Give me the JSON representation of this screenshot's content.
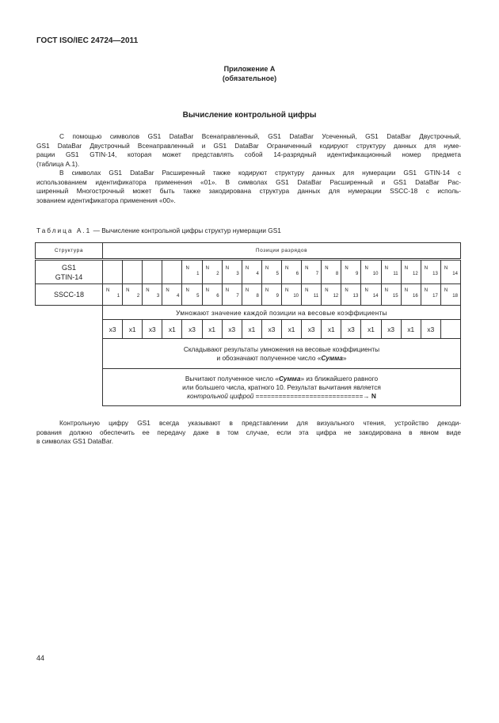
{
  "header": "ГОСТ ISO/IEC 24724—2011",
  "appendix": {
    "title": "Приложение А",
    "status": "(обязательное)"
  },
  "section_title": "Вычисление контрольной цифры",
  "paragraphs": [
    [
      "С помощью символов GS1 DataBar Всенаправленный, GS1 DataBar Усеченный, GS1 DataBar Двустрочный,",
      "GS1 DataBar Двустрочный Всенаправленный и GS1 DataBar Ограниченный кодируют структуру данных для нуме-",
      "рации GS1 GTIN-14, которая может представлять собой 14-разрядный идентификационный номер предмета",
      "(таблица А.1)."
    ],
    [
      "В символах GS1 DataBar Расширенный также кодируют структуру данных для нумерации GS1 GTIN-14 с",
      "использованием идентификатора применения «01». В символах GS1 DataBar Расширенный и GS1 DataBar Рас-",
      "ширенный Многострочный может быть также закодирована структура данных для нумерации SSCC-18 с исполь-",
      "зованием идентификатора применения «00»."
    ]
  ],
  "table": {
    "caption_label": "Таблица А.1",
    "caption_text": " — Вычисление контрольной цифры структур нумерации GS1",
    "col_structure": "Структура",
    "col_positions": "Позиции разрядов",
    "gtin_label": [
      "GS1",
      "GTIN-14"
    ],
    "gtin_cells": [
      "",
      "",
      "",
      "",
      "N|1",
      "N|2",
      "N|3",
      "N|4",
      "N|5",
      "N|6",
      "N|7",
      "N|8",
      "N|9",
      "N|10",
      "N|11",
      "N|12",
      "N|13",
      "N|14"
    ],
    "sscc_label": "SSCC-18",
    "sscc_cells": [
      "N|1",
      "N|2",
      "N|3",
      "N|4",
      "N|5",
      "N|6",
      "N|7",
      "N|8",
      "N|9",
      "N|10",
      "N|11",
      "N|12",
      "N|13",
      "N|14",
      "N|15",
      "N|16",
      "N|17",
      "N|18"
    ],
    "multiply_text": "Умножают значение каждой позиции на весовые коэффициенты",
    "weights": [
      "x3",
      "x1",
      "x3",
      "x1",
      "x3",
      "x1",
      "x3",
      "x1",
      "x3",
      "x1",
      "x3",
      "x1",
      "x3",
      "x1",
      "x3",
      "x1",
      "x3",
      ""
    ],
    "sum_line1": "Складывают результаты умножения на весовые коэффициенты",
    "sum_line2_pre": "и обозначают полученное число «",
    "sum_word": "Сумма",
    "sum_line2_post": "»",
    "sub_line1_pre": "Вычитают полученное число «",
    "sub_word": "Сумма",
    "sub_line1_post": "» из ближайшего равного",
    "sub_line2": "или большего числа, кратного 10. Результат вычитания является",
    "sub_line3_italic": "контрольной цифрой",
    "sub_line3_arrow": " ============================→ ",
    "sub_line3_N": "N"
  },
  "closing_paragraph": [
    "Контрольную цифру GS1 всегда указывают в представлении для визуального чтения, устройство декоди-",
    "рования должно обеспечить ее передачу даже в том случае, если эта цифра не закодирована в явном виде",
    "в символах GS1 DataBar."
  ],
  "page_number": "44"
}
